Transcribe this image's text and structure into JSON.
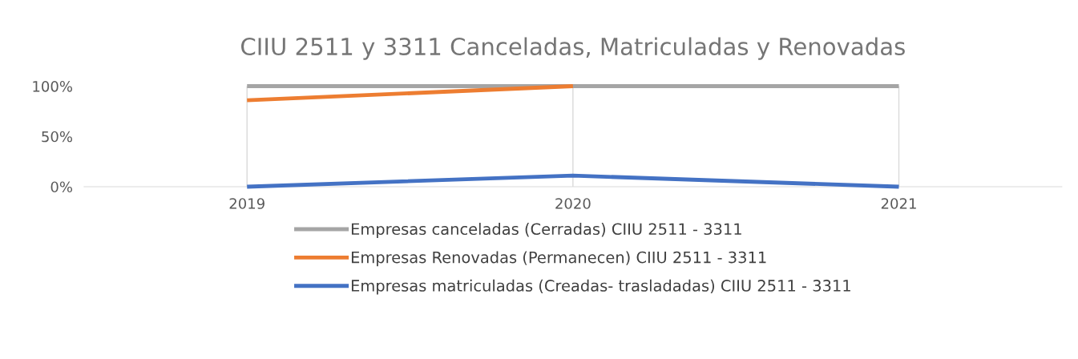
{
  "chart_data": {
    "type": "line",
    "title": "CIIU 2511 y 3311 Canceladas, Matriculadas y Renovadas",
    "categories": [
      "2019",
      "2020",
      "2021"
    ],
    "series": [
      {
        "name": "Empresas canceladas (Cerradas) CIIU 2511 - 3311",
        "color": "#a5a5a5",
        "values": [
          100,
          100,
          100
        ]
      },
      {
        "name": "Empresas Renovadas (Permanecen) CIIU 2511 - 3311",
        "color": "#ed7d31",
        "values": [
          86,
          100,
          null
        ]
      },
      {
        "name": "Empresas matriculadas (Creadas- trasladadas) CIIU 2511 - 3311",
        "color": "#4472c4",
        "values": [
          0,
          11,
          0
        ]
      }
    ],
    "ylim": [
      0,
      100
    ],
    "yticks": [
      {
        "value": 0,
        "label": "0%"
      },
      {
        "value": 50,
        "label": "50%"
      },
      {
        "value": 100,
        "label": "100%"
      }
    ],
    "grid": "x",
    "legend": "bottom",
    "marker": "none",
    "line_style": "solid"
  }
}
